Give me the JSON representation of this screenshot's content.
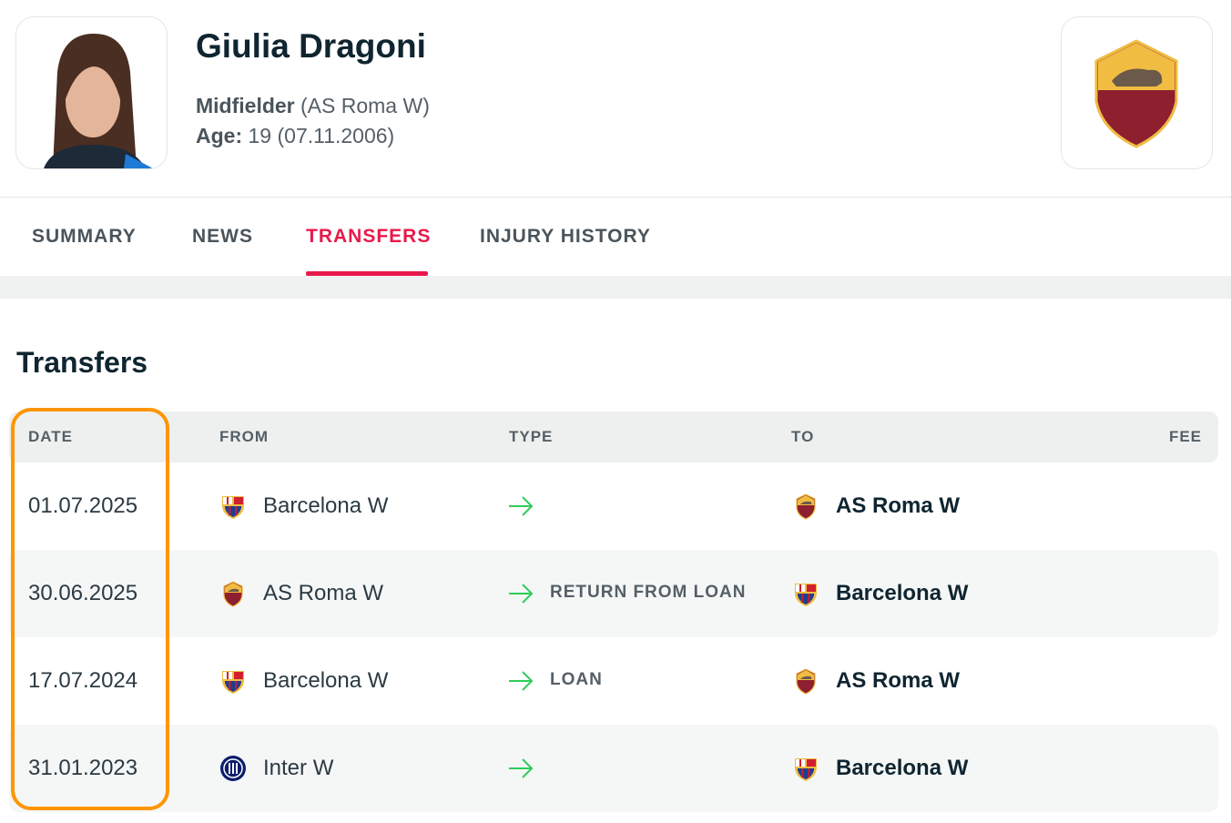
{
  "header": {
    "name": "Giulia Dragoni",
    "position": "Midfielder",
    "team": "(AS Roma W)",
    "age_label": "Age:",
    "age": "19 (07.11.2006)"
  },
  "tabs": [
    "SUMMARY",
    "NEWS",
    "TRANSFERS",
    "INJURY HISTORY"
  ],
  "section_title": "Transfers",
  "table": {
    "columns": [
      "DATE",
      "FROM",
      "TYPE",
      "TO",
      "FEE"
    ],
    "rows": [
      {
        "date": "01.07.2025",
        "from": "Barcelona W",
        "to": "AS Roma W"
      },
      {
        "date": "30.06.2025",
        "from": "AS Roma W",
        "type": "RETURN FROM LOAN",
        "to": "Barcelona W"
      },
      {
        "date": "17.07.2024",
        "from": "Barcelona W",
        "type": "LOAN",
        "to": "AS Roma W"
      },
      {
        "date": "31.01.2023",
        "from": "Inter W",
        "to": "Barcelona W"
      }
    ]
  }
}
